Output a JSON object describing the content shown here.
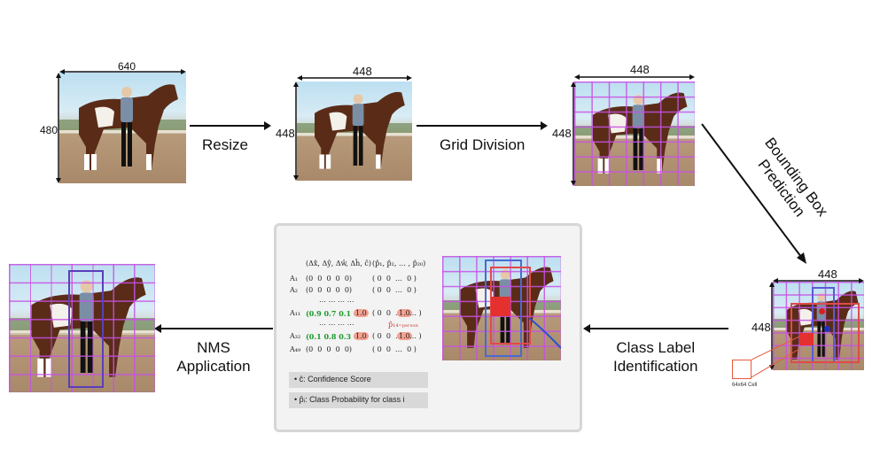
{
  "steps": {
    "resize": "Resize",
    "grid_division": "Grid Division",
    "bbox_prediction_line1": "Bounding Box",
    "bbox_prediction_line2": "Prediction",
    "class_label_line1": "Class Label",
    "class_label_line2": "Identification",
    "nms_line1": "NMS",
    "nms_line2": "Application"
  },
  "dimensions": {
    "orig_width": "640",
    "orig_height": "480",
    "resized_width": "448",
    "resized_height": "448",
    "grid_width": "448",
    "grid_height": "448",
    "bbox_width": "448",
    "bbox_height": "448",
    "cell_label": "64x64 Cell"
  },
  "vector_panel": {
    "header_left": "(Δx̂, Δŷ, Δŵ, Δĥ, ĉ)",
    "header_right": "(p̂₁, p̂₂, … , p̂₂₀)",
    "row_a1_label": "A₁",
    "row_a1_vals": "(0  0  0  0  0)",
    "row_a1_probs": "( 0  0  …  0 )",
    "row_a2_label": "A₂",
    "row_a2_vals": "(0  0  0  0  0)",
    "row_a2_probs": "( 0  0  …  0 )",
    "dots": "⋯ ⋯ ⋯ ⋯",
    "row_a11_label": "A₁₁",
    "row_a11_vals": "(0.9 0.7 0.1 0.1",
    "row_a11_conf": "1.0",
    "row_a11_probs_l": "( 0  0  …",
    "row_a11_probs_hl": "1.0",
    "row_a11_probs_r": "… )",
    "person_label": "p̂₁₄₌ₚₑᵣₛₒₙ",
    "row_a32_label": "A₃₂",
    "row_a32_vals": "(0.1 0.8 0.3 0.5",
    "row_a32_conf": "1.0",
    "row_a32_probs_l": "( 0  0  …",
    "row_a32_probs_hl": "1.0",
    "row_a32_probs_r": "… )",
    "row_a49_label": "A₄₉",
    "row_a49_vals": "(0  0  0  0  0)",
    "row_a49_probs": "( 0  0  …  0 )",
    "legend_conf": "ĉ: Confidence Score",
    "legend_prob": "p̂ᵢ: Class Probability for class i"
  }
}
